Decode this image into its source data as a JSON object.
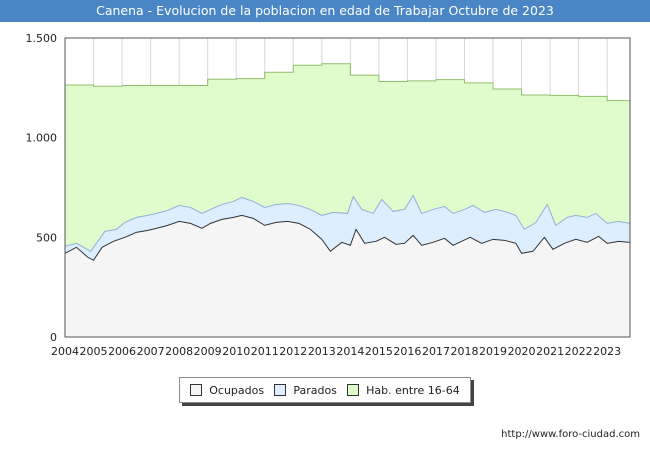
{
  "header": {
    "title": "Canena - Evolucion de la poblacion en edad de Trabajar Octubre de 2023"
  },
  "footer": {
    "source": "http://www.foro-ciudad.com"
  },
  "colors": {
    "title_bg": "#4a86c5",
    "hab": "#e0fccc",
    "hab_line": "#8fbf6a",
    "parados": "#ddeeff",
    "parados_line": "#8fb0d8",
    "ocupados": "#f5f5f5",
    "ocupados_line": "#333333",
    "grid": "#d8d8d8"
  },
  "chart_data": {
    "type": "area",
    "title": "Canena - Evolucion de la poblacion en edad de Trabajar Octubre de 2023",
    "xlabel": "",
    "ylabel": "",
    "xlim": [
      2004,
      2023.8
    ],
    "ylim": [
      0,
      1500
    ],
    "x_ticks": [
      "2004",
      "2005",
      "2006",
      "2007",
      "2008",
      "2009",
      "2010",
      "2011",
      "2012",
      "2013",
      "2014",
      "2015",
      "2016",
      "2017",
      "2018",
      "2019",
      "2020",
      "2021",
      "2022",
      "2023"
    ],
    "y_ticks": [
      {
        "value": 0,
        "label": "0"
      },
      {
        "value": 500,
        "label": "500"
      },
      {
        "value": 1000,
        "label": "1.000"
      },
      {
        "value": 1500,
        "label": "1.500"
      }
    ],
    "grid": true,
    "legend_position": "bottom",
    "legend": [
      "Ocupados",
      "Parados",
      "Hab. entre 16-64"
    ],
    "series": [
      {
        "name": "Hab. entre 16-64",
        "step": true,
        "years": [
          2004,
          2005,
          2006,
          2007,
          2008,
          2009,
          2010,
          2011,
          2012,
          2013,
          2014,
          2015,
          2016,
          2017,
          2018,
          2019,
          2020,
          2021,
          2022,
          2023
        ],
        "values": [
          1264,
          1258,
          1262,
          1262,
          1262,
          1293,
          1296,
          1328,
          1363,
          1371,
          1314,
          1282,
          1285,
          1291,
          1275,
          1244,
          1214,
          1212,
          1207,
          1186
        ]
      },
      {
        "name": "Parados",
        "points": [
          [
            2004,
            455
          ],
          [
            2004.4,
            470
          ],
          [
            2004.9,
            430
          ],
          [
            2005.1,
            470
          ],
          [
            2005.4,
            530
          ],
          [
            2005.8,
            540
          ],
          [
            2006.1,
            575
          ],
          [
            2006.5,
            600
          ],
          [
            2006.9,
            610
          ],
          [
            2007.2,
            620
          ],
          [
            2007.6,
            635
          ],
          [
            2008,
            660
          ],
          [
            2008.4,
            650
          ],
          [
            2008.8,
            620
          ],
          [
            2009.1,
            640
          ],
          [
            2009.5,
            665
          ],
          [
            2009.9,
            680
          ],
          [
            2010.2,
            700
          ],
          [
            2010.6,
            680
          ],
          [
            2011,
            650
          ],
          [
            2011.4,
            665
          ],
          [
            2011.8,
            670
          ],
          [
            2012.2,
            660
          ],
          [
            2012.6,
            640
          ],
          [
            2013,
            610
          ],
          [
            2013.4,
            625
          ],
          [
            2013.9,
            620
          ],
          [
            2014.1,
            705
          ],
          [
            2014.4,
            640
          ],
          [
            2014.8,
            620
          ],
          [
            2015.1,
            690
          ],
          [
            2015.5,
            630
          ],
          [
            2015.9,
            640
          ],
          [
            2016.2,
            710
          ],
          [
            2016.5,
            620
          ],
          [
            2016.9,
            640
          ],
          [
            2017.3,
            655
          ],
          [
            2017.6,
            620
          ],
          [
            2018,
            640
          ],
          [
            2018.3,
            660
          ],
          [
            2018.7,
            625
          ],
          [
            2019.1,
            640
          ],
          [
            2019.4,
            630
          ],
          [
            2019.8,
            610
          ],
          [
            2020.1,
            540
          ],
          [
            2020.5,
            575
          ],
          [
            2020.9,
            665
          ],
          [
            2021.2,
            560
          ],
          [
            2021.6,
            600
          ],
          [
            2021.9,
            610
          ],
          [
            2022.3,
            600
          ],
          [
            2022.6,
            620
          ],
          [
            2023,
            570
          ],
          [
            2023.4,
            580
          ],
          [
            2023.8,
            570
          ]
        ]
      },
      {
        "name": "Ocupados",
        "points": [
          [
            2004,
            420
          ],
          [
            2004.4,
            450
          ],
          [
            2004.8,
            400
          ],
          [
            2005,
            385
          ],
          [
            2005.3,
            450
          ],
          [
            2005.7,
            480
          ],
          [
            2006.1,
            500
          ],
          [
            2006.5,
            525
          ],
          [
            2006.9,
            535
          ],
          [
            2007.2,
            545
          ],
          [
            2007.6,
            560
          ],
          [
            2008,
            580
          ],
          [
            2008.4,
            570
          ],
          [
            2008.8,
            545
          ],
          [
            2009.1,
            570
          ],
          [
            2009.5,
            590
          ],
          [
            2009.9,
            600
          ],
          [
            2010.2,
            610
          ],
          [
            2010.6,
            595
          ],
          [
            2011,
            560
          ],
          [
            2011.4,
            575
          ],
          [
            2011.8,
            580
          ],
          [
            2012.2,
            570
          ],
          [
            2012.6,
            540
          ],
          [
            2013,
            490
          ],
          [
            2013.3,
            430
          ],
          [
            2013.7,
            475
          ],
          [
            2014,
            460
          ],
          [
            2014.2,
            540
          ],
          [
            2014.5,
            470
          ],
          [
            2014.9,
            480
          ],
          [
            2015.2,
            500
          ],
          [
            2015.6,
            465
          ],
          [
            2015.9,
            470
          ],
          [
            2016.2,
            510
          ],
          [
            2016.5,
            460
          ],
          [
            2016.9,
            475
          ],
          [
            2017.3,
            495
          ],
          [
            2017.6,
            460
          ],
          [
            2017.9,
            480
          ],
          [
            2018.2,
            500
          ],
          [
            2018.6,
            470
          ],
          [
            2019,
            490
          ],
          [
            2019.4,
            485
          ],
          [
            2019.8,
            470
          ],
          [
            2020,
            420
          ],
          [
            2020.4,
            430
          ],
          [
            2020.8,
            500
          ],
          [
            2021.1,
            440
          ],
          [
            2021.5,
            470
          ],
          [
            2021.9,
            490
          ],
          [
            2022.3,
            475
          ],
          [
            2022.7,
            505
          ],
          [
            2023,
            470
          ],
          [
            2023.4,
            480
          ],
          [
            2023.8,
            475
          ]
        ]
      }
    ]
  }
}
